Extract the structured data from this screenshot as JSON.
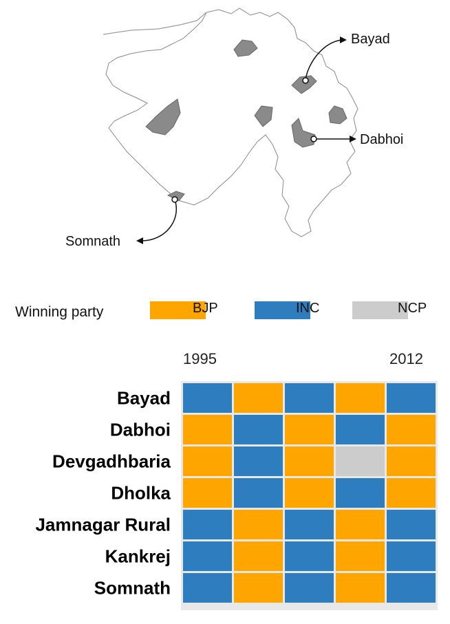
{
  "map": {
    "labels": [
      "Bayad",
      "Dabhoi",
      "Somnath"
    ]
  },
  "legend": {
    "title": "Winning party",
    "items": [
      {
        "label": "BJP",
        "color": "#FFA500"
      },
      {
        "label": "INC",
        "color": "#2E7DBE"
      },
      {
        "label": "NCP",
        "color": "#CCCCCC"
      }
    ]
  },
  "chart_data": {
    "type": "heatmap",
    "x_start_label": "1995",
    "x_end_label": "2012",
    "columns": 5,
    "rows": [
      "Bayad",
      "Dabhoi",
      "Devgadhbaria",
      "Dholka",
      "Jamnagar Rural",
      "Kankrej",
      "Somnath"
    ],
    "values": [
      [
        "INC",
        "BJP",
        "INC",
        "BJP",
        "INC"
      ],
      [
        "BJP",
        "INC",
        "BJP",
        "INC",
        "BJP"
      ],
      [
        "BJP",
        "INC",
        "BJP",
        "NCP",
        "BJP"
      ],
      [
        "BJP",
        "INC",
        "BJP",
        "INC",
        "BJP"
      ],
      [
        "INC",
        "BJP",
        "INC",
        "BJP",
        "INC"
      ],
      [
        "INC",
        "BJP",
        "INC",
        "BJP",
        "INC"
      ],
      [
        "INC",
        "BJP",
        "INC",
        "BJP",
        "INC"
      ]
    ],
    "colors": {
      "BJP": "#FFA500",
      "INC": "#2E7DBE",
      "NCP": "#CCCCCC"
    }
  }
}
